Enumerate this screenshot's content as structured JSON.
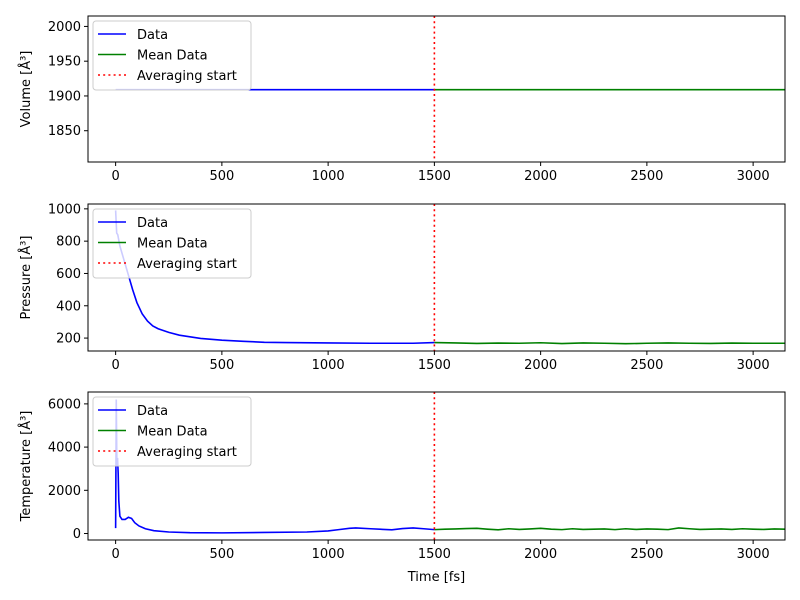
{
  "chart_data": [
    {
      "type": "line",
      "ylabel": "Volume [Å³]",
      "xlabel": "",
      "xlim": [
        -130,
        3150
      ],
      "ylim": [
        1805,
        2015
      ],
      "xticks": [
        0,
        500,
        1000,
        1500,
        2000,
        2500,
        3000
      ],
      "yticks": [
        1850,
        1900,
        1950,
        2000
      ],
      "vline": {
        "x": 1500,
        "label": "Averaging start",
        "color": "#ff0000",
        "style": "dotted"
      },
      "legend": {
        "position": "top-left",
        "entries": [
          "Data",
          "Mean Data",
          "Averaging start"
        ]
      },
      "series": [
        {
          "name": "Data",
          "color": "#0000ff",
          "x": [
            0,
            1500
          ],
          "y": [
            1909,
            1909
          ]
        },
        {
          "name": "Mean Data",
          "color": "#008000",
          "x": [
            1500,
            3150
          ],
          "y": [
            1909,
            1909
          ]
        }
      ]
    },
    {
      "type": "line",
      "ylabel": "Pressure [Å³]",
      "xlabel": "",
      "xlim": [
        -130,
        3150
      ],
      "ylim": [
        120,
        1030
      ],
      "xticks": [
        0,
        500,
        1000,
        1500,
        2000,
        2500,
        3000
      ],
      "yticks": [
        200,
        400,
        600,
        800,
        1000
      ],
      "vline": {
        "x": 1500,
        "label": "Averaging start",
        "color": "#ff0000",
        "style": "dotted"
      },
      "legend": {
        "position": "top-left",
        "entries": [
          "Data",
          "Mean Data",
          "Averaging start"
        ]
      },
      "series": [
        {
          "name": "Data",
          "color": "#0000ff",
          "x": [
            0,
            5,
            10,
            20,
            40,
            60,
            80,
            100,
            125,
            150,
            175,
            200,
            250,
            300,
            400,
            500,
            600,
            700,
            800,
            1000,
            1200,
            1400,
            1500
          ],
          "y": [
            990,
            850,
            840,
            770,
            680,
            590,
            500,
            420,
            350,
            305,
            275,
            258,
            235,
            218,
            198,
            187,
            180,
            174,
            172,
            170,
            168,
            168,
            172
          ]
        },
        {
          "name": "Mean Data",
          "color": "#008000",
          "x": [
            1500,
            1600,
            1700,
            1800,
            1900,
            2000,
            2100,
            2200,
            2300,
            2400,
            2500,
            2600,
            2700,
            2800,
            2900,
            3000,
            3150
          ],
          "y": [
            172,
            170,
            167,
            169,
            168,
            171,
            166,
            170,
            168,
            165,
            168,
            170,
            168,
            167,
            169,
            168,
            168
          ]
        }
      ]
    },
    {
      "type": "line",
      "ylabel": "Temperature [Å³]",
      "xlabel": "Time [fs]",
      "xlim": [
        -130,
        3150
      ],
      "ylim": [
        -300,
        6550
      ],
      "xticks": [
        0,
        500,
        1000,
        1500,
        2000,
        2500,
        3000
      ],
      "yticks": [
        0,
        2000,
        4000,
        6000
      ],
      "vline": {
        "x": 1500,
        "label": "Averaging start",
        "color": "#ff0000",
        "style": "dotted"
      },
      "legend": {
        "position": "top-left",
        "entries": [
          "Data",
          "Mean Data",
          "Averaging start"
        ]
      },
      "series": [
        {
          "name": "Data",
          "color": "#0000ff",
          "x": [
            0,
            3,
            6,
            9,
            12,
            15,
            20,
            30,
            45,
            60,
            75,
            90,
            110,
            140,
            180,
            250,
            350,
            500,
            700,
            900,
            1000,
            1050,
            1100,
            1130,
            1200,
            1300,
            1350,
            1400,
            1450,
            1500
          ],
          "y": [
            250,
            6200,
            3100,
            3500,
            2800,
            1500,
            800,
            650,
            650,
            750,
            700,
            500,
            350,
            220,
            130,
            70,
            40,
            30,
            50,
            70,
            120,
            180,
            240,
            260,
            220,
            170,
            230,
            260,
            220,
            180
          ]
        },
        {
          "name": "Mean Data",
          "color": "#008000",
          "x": [
            1500,
            1550,
            1600,
            1650,
            1700,
            1750,
            1800,
            1850,
            1900,
            1950,
            2000,
            2050,
            2100,
            2150,
            2200,
            2250,
            2300,
            2350,
            2400,
            2450,
            2500,
            2550,
            2600,
            2650,
            2700,
            2750,
            2800,
            2850,
            2900,
            2950,
            3000,
            3050,
            3100,
            3150
          ],
          "y": [
            180,
            200,
            210,
            230,
            240,
            200,
            170,
            220,
            190,
            210,
            240,
            200,
            180,
            220,
            190,
            200,
            210,
            180,
            220,
            190,
            210,
            200,
            180,
            260,
            220,
            190,
            200,
            210,
            190,
            220,
            200,
            190,
            210,
            200
          ]
        }
      ]
    }
  ]
}
